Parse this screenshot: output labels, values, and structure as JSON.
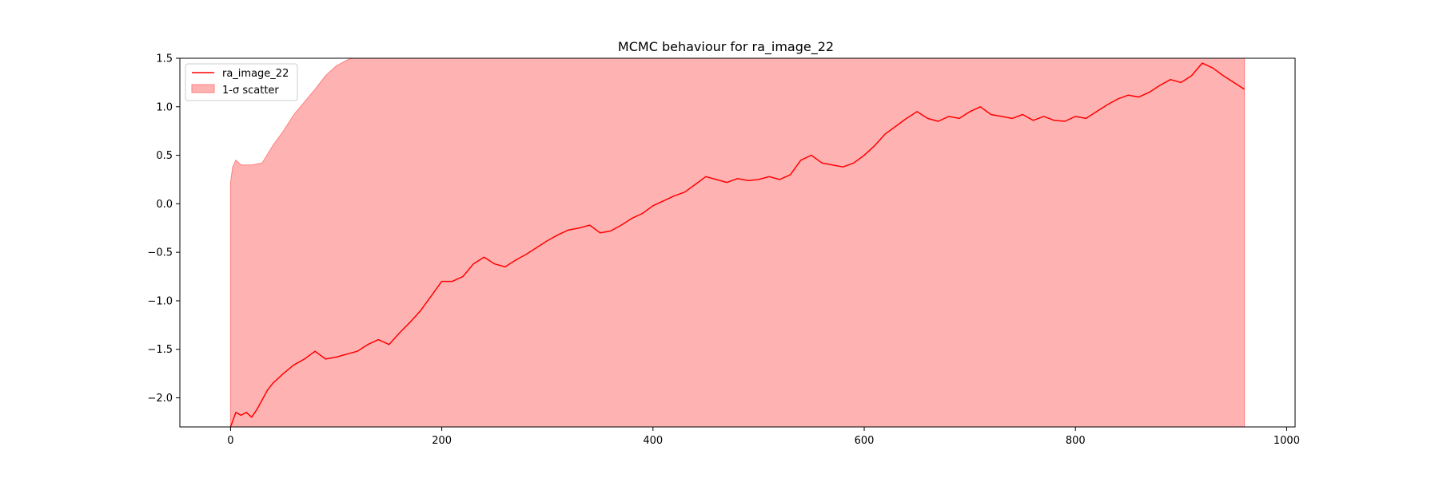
{
  "chart_data": {
    "type": "line",
    "title": "MCMC behaviour for ra_image_22",
    "xlabel": "",
    "ylabel": "",
    "xlim": [
      -48,
      1008
    ],
    "ylim": [
      -2.3,
      1.5
    ],
    "x_ticks": [
      0,
      200,
      400,
      600,
      800,
      1000
    ],
    "x_tick_labels": [
      "0",
      "200",
      "400",
      "600",
      "800",
      "1000"
    ],
    "y_ticks": [
      -2.0,
      -1.5,
      -1.0,
      -0.5,
      0.0,
      0.5,
      1.0,
      1.5
    ],
    "y_tick_labels": [
      "−2.0",
      "−1.5",
      "−1.0",
      "−0.5",
      "0.0",
      "0.5",
      "1.0",
      "1.5"
    ],
    "grid": false,
    "legend_position": "top-left",
    "series": [
      {
        "name": "ra_image_22",
        "kind": "line",
        "color": "#ff0000",
        "x": [
          0,
          5,
          10,
          15,
          20,
          25,
          30,
          35,
          40,
          50,
          60,
          70,
          80,
          90,
          100,
          110,
          120,
          130,
          140,
          150,
          160,
          170,
          180,
          190,
          200,
          210,
          220,
          230,
          240,
          250,
          260,
          270,
          280,
          290,
          300,
          310,
          320,
          330,
          340,
          350,
          360,
          370,
          380,
          390,
          400,
          410,
          420,
          430,
          440,
          450,
          460,
          470,
          480,
          490,
          500,
          510,
          520,
          530,
          540,
          550,
          560,
          570,
          580,
          590,
          600,
          610,
          620,
          630,
          640,
          650,
          660,
          670,
          680,
          690,
          700,
          710,
          720,
          730,
          740,
          750,
          760,
          770,
          780,
          790,
          800,
          810,
          820,
          830,
          840,
          850,
          860,
          870,
          880,
          890,
          900,
          910,
          920,
          930,
          940,
          950,
          960
        ],
        "y": [
          -2.3,
          -2.15,
          -2.18,
          -2.15,
          -2.2,
          -2.12,
          -2.02,
          -1.92,
          -1.85,
          -1.75,
          -1.66,
          -1.6,
          -1.52,
          -1.6,
          -1.58,
          -1.55,
          -1.52,
          -1.45,
          -1.4,
          -1.45,
          -1.33,
          -1.22,
          -1.1,
          -0.95,
          -0.8,
          -0.8,
          -0.75,
          -0.62,
          -0.55,
          -0.62,
          -0.65,
          -0.58,
          -0.52,
          -0.45,
          -0.38,
          -0.32,
          -0.27,
          -0.25,
          -0.22,
          -0.3,
          -0.28,
          -0.22,
          -0.15,
          -0.1,
          -0.02,
          0.03,
          0.08,
          0.12,
          0.2,
          0.28,
          0.25,
          0.22,
          0.26,
          0.24,
          0.25,
          0.28,
          0.25,
          0.3,
          0.45,
          0.5,
          0.42,
          0.4,
          0.38,
          0.42,
          0.5,
          0.6,
          0.72,
          0.8,
          0.88,
          0.95,
          0.88,
          0.85,
          0.9,
          0.88,
          0.95,
          1.0,
          0.92,
          0.9,
          0.88,
          0.92,
          0.86,
          0.9,
          0.86,
          0.85,
          0.9,
          0.88,
          0.95,
          1.02,
          1.08,
          1.12,
          1.1,
          1.15,
          1.22,
          1.28,
          1.25,
          1.32,
          1.45,
          1.4,
          1.32,
          1.25,
          1.18
        ]
      },
      {
        "name": "1-σ scatter",
        "kind": "band",
        "color": "#ff7f7f",
        "alpha": 0.6,
        "x": [
          0,
          2,
          5,
          10,
          20,
          30,
          40,
          50,
          60,
          70,
          80,
          90,
          100,
          110,
          120,
          130,
          140,
          960
        ],
        "upper": [
          0.22,
          0.38,
          0.45,
          0.4,
          0.4,
          0.42,
          0.6,
          0.75,
          0.92,
          1.05,
          1.18,
          1.32,
          1.42,
          1.48,
          1.52,
          1.55,
          1.6,
          1.6
        ],
        "lower": [
          -2.3,
          -2.3,
          -2.3,
          -2.3,
          -2.3,
          -2.3,
          -2.3,
          -2.3,
          -2.3,
          -2.3,
          -2.3,
          -2.3,
          -2.3,
          -2.3,
          -2.3,
          -2.3,
          -2.3,
          -2.3
        ]
      }
    ]
  },
  "legend": {
    "items": [
      {
        "label": "ra_image_22",
        "swatch": "line",
        "color": "#ff0000"
      },
      {
        "label": "1-σ scatter",
        "swatch": "patch",
        "color": "#ff7f7f"
      }
    ]
  }
}
